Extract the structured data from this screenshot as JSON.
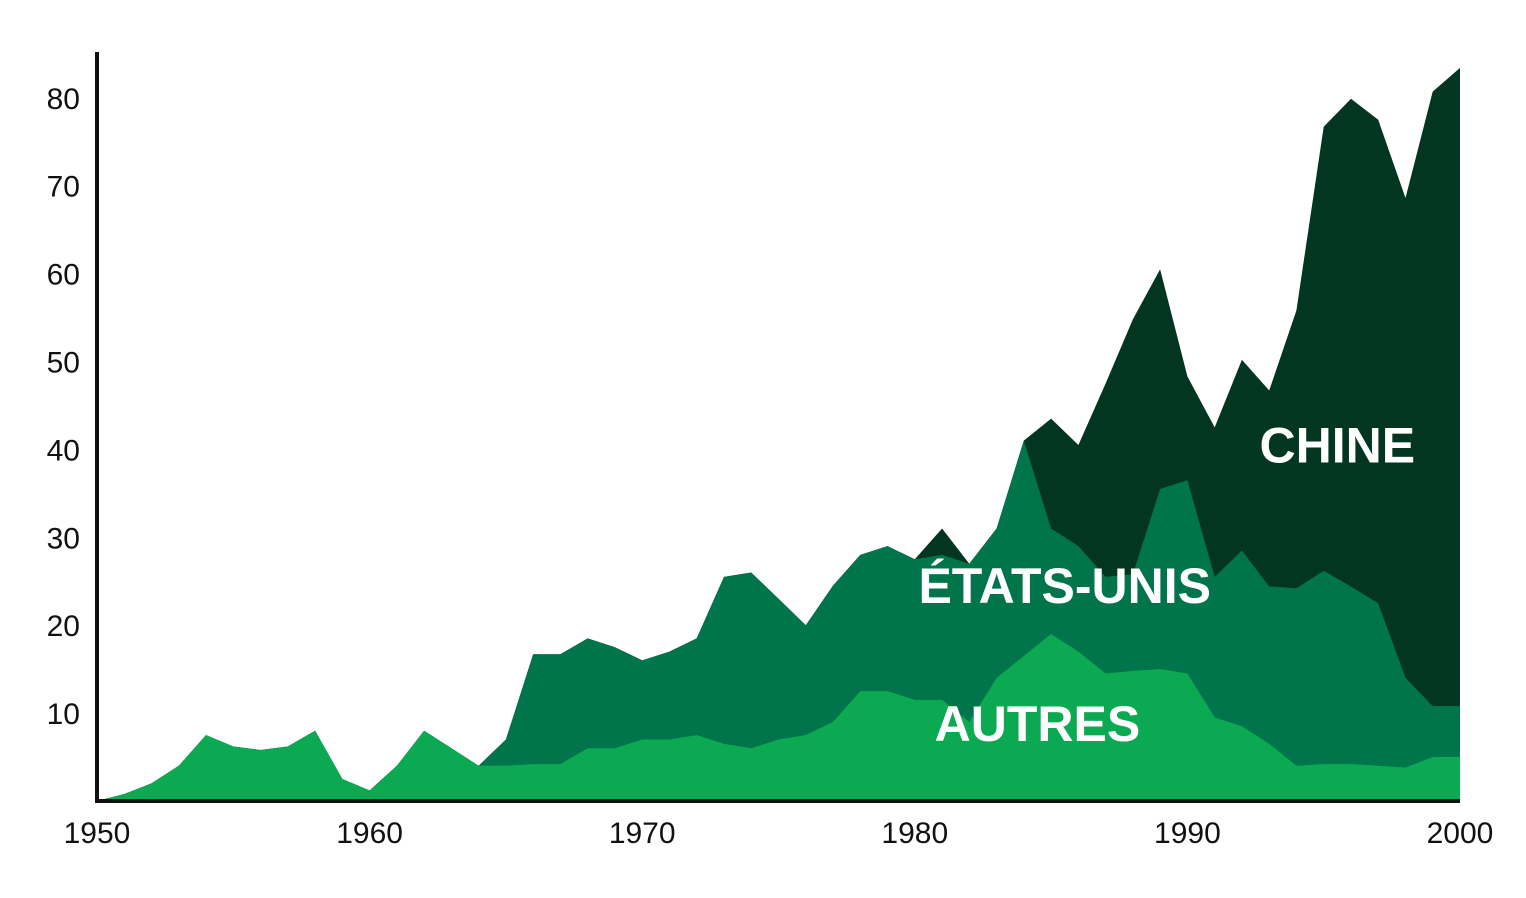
{
  "chart_data": {
    "type": "area",
    "stacked": true,
    "title": "",
    "xlabel": "",
    "ylabel": "",
    "xlim": [
      1950,
      2000
    ],
    "ylim": [
      0,
      84
    ],
    "grid": false,
    "x_ticks": [
      1950,
      1960,
      1970,
      1980,
      1990,
      2000
    ],
    "x_tick_labels": [
      "1950",
      "1960",
      "1970",
      "1980",
      "1990",
      "2000"
    ],
    "y_ticks": [
      10,
      20,
      30,
      40,
      50,
      60,
      70,
      80
    ],
    "y_tick_labels": [
      "10",
      "20",
      "30",
      "40",
      "50",
      "60",
      "70",
      "80"
    ],
    "x": [
      1950,
      1951,
      1952,
      1953,
      1954,
      1955,
      1956,
      1957,
      1958,
      1959,
      1960,
      1961,
      1962,
      1963,
      1964,
      1965,
      1966,
      1967,
      1968,
      1969,
      1970,
      1971,
      1972,
      1973,
      1974,
      1975,
      1976,
      1977,
      1978,
      1979,
      1980,
      1981,
      1982,
      1983,
      1984,
      1985,
      1986,
      1987,
      1988,
      1989,
      1990,
      1991,
      1992,
      1993,
      1994,
      1995,
      1996,
      1997,
      1998,
      1999,
      2000
    ],
    "series": [
      {
        "name": "AUTRES",
        "color": "#0BAA52",
        "values": [
          0,
          0.8,
          2,
          4,
          7.5,
          6.2,
          5.8,
          6.2,
          8,
          2.5,
          1.2,
          4,
          8,
          6,
          4,
          4,
          4.2,
          4.2,
          6,
          6,
          7,
          7,
          7.5,
          6.5,
          6,
          7,
          7.5,
          9,
          12.5,
          12.5,
          11.5,
          11.5,
          9,
          14,
          16.5,
          19,
          17,
          14.5,
          14.8,
          15,
          14.5,
          9.5,
          8.5,
          6.5,
          4,
          4.2,
          4.2,
          4,
          3.8,
          5,
          5
        ]
      },
      {
        "name": "ÉTATS-UNIS",
        "color": "#00744A",
        "values": [
          0,
          0,
          0,
          0,
          0,
          0,
          0,
          0,
          0,
          0,
          0,
          0,
          0,
          0,
          0,
          3,
          12.5,
          12.5,
          12.5,
          11.5,
          9,
          10,
          11,
          19,
          20,
          16,
          12.5,
          15.5,
          15.5,
          16.5,
          16,
          16.5,
          18,
          17,
          24.5,
          12,
          12,
          11,
          11,
          20.5,
          22,
          16,
          20,
          17.9,
          20.2,
          22,
          20.2,
          18.5,
          10.2,
          5.8,
          5.8
        ]
      },
      {
        "name": "CHINE",
        "color": "#023621",
        "values": [
          0,
          0,
          0,
          0,
          0,
          0,
          0,
          0,
          0,
          0,
          0,
          0,
          0,
          0,
          0,
          0,
          0,
          0,
          0,
          0,
          0,
          0,
          0,
          0,
          0,
          0,
          0,
          0,
          0,
          0,
          0,
          3,
          0,
          0,
          0,
          12.5,
          11.5,
          22,
          29,
          25,
          11.8,
          17,
          21.7,
          22.3,
          31.6,
          50.5,
          55.5,
          55,
          54.6,
          69.9,
          72.6
        ]
      }
    ]
  }
}
